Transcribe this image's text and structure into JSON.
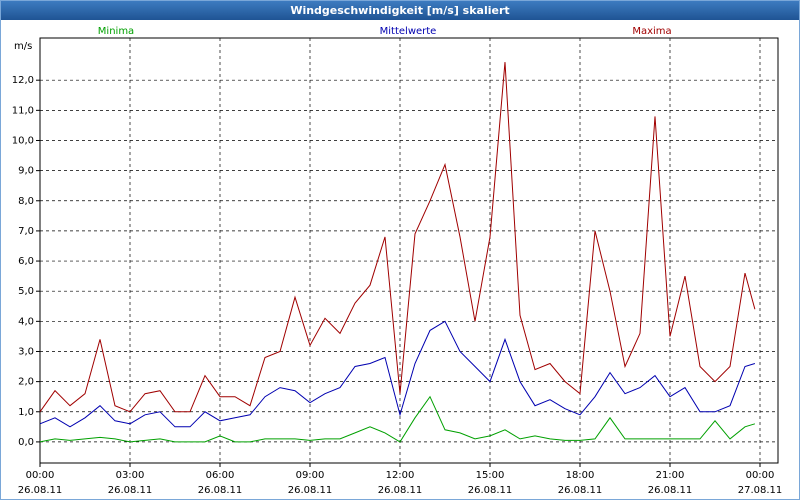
{
  "chart_data": {
    "type": "line",
    "title": "Windgeschwindigkeit [m/s] skaliert",
    "ylabel": "m/s",
    "x": [
      0,
      0.5,
      1,
      1.5,
      2,
      2.5,
      3,
      3.5,
      4,
      4.5,
      5,
      5.5,
      6,
      6.5,
      7,
      7.5,
      8,
      8.5,
      9,
      9.5,
      10,
      10.5,
      11,
      11.5,
      12,
      12.5,
      13,
      13.5,
      14,
      14.5,
      15,
      15.5,
      16,
      16.5,
      17,
      17.5,
      18,
      18.5,
      19,
      19.5,
      20,
      20.5,
      21,
      21.5,
      22,
      22.5,
      23,
      23.5,
      23.83
    ],
    "series": [
      {
        "name": "Minima",
        "color": "#00a000",
        "values": [
          0,
          0.1,
          0.05,
          0.1,
          0.15,
          0.1,
          0,
          0.05,
          0.1,
          0,
          0,
          0,
          0.2,
          0,
          0,
          0.1,
          0.1,
          0.1,
          0.05,
          0.1,
          0.1,
          0.3,
          0.5,
          0.3,
          0,
          0.8,
          1.5,
          0.4,
          0.3,
          0.1,
          0.2,
          0.4,
          0.1,
          0.2,
          0.1,
          0.05,
          0.05,
          0.1,
          0.8,
          0.1,
          0.1,
          0.1,
          0.1,
          0.1,
          0.1,
          0.7,
          0.1,
          0.5,
          0.6
        ]
      },
      {
        "name": "Mittelwerte",
        "color": "#0000b0",
        "values": [
          0.6,
          0.8,
          0.5,
          0.8,
          1.2,
          0.7,
          0.6,
          0.9,
          1.0,
          0.5,
          0.5,
          1.0,
          0.7,
          0.8,
          0.9,
          1.5,
          1.8,
          1.7,
          1.3,
          1.6,
          1.8,
          2.5,
          2.6,
          2.8,
          0.9,
          2.6,
          3.7,
          4.0,
          3.0,
          2.5,
          2.0,
          3.4,
          2.0,
          1.2,
          1.4,
          1.1,
          0.9,
          1.5,
          2.3,
          1.6,
          1.8,
          2.2,
          1.5,
          1.8,
          1.0,
          1.0,
          1.2,
          2.5,
          2.6
        ]
      },
      {
        "name": "Maxima",
        "color": "#a00000",
        "values": [
          1.0,
          1.7,
          1.2,
          1.6,
          3.4,
          1.2,
          1.0,
          1.6,
          1.7,
          1.0,
          1.0,
          2.2,
          1.5,
          1.5,
          1.2,
          2.8,
          3.0,
          4.8,
          3.2,
          4.1,
          3.6,
          4.6,
          5.2,
          6.8,
          1.6,
          6.9,
          8.0,
          9.2,
          6.8,
          4.0,
          6.8,
          12.6,
          4.2,
          2.4,
          2.6,
          2.0,
          1.6,
          7.0,
          5.0,
          2.5,
          3.6,
          10.8,
          3.5,
          5.5,
          2.5,
          2.0,
          2.5,
          5.6,
          4.4
        ]
      }
    ],
    "xlim": [
      0,
      24
    ],
    "xticks": [
      {
        "value": 0,
        "label": "00:00",
        "date": "26.08.11"
      },
      {
        "value": 3,
        "label": "03:00",
        "date": "26.08.11"
      },
      {
        "value": 6,
        "label": "06:00",
        "date": "26.08.11"
      },
      {
        "value": 9,
        "label": "09:00",
        "date": "26.08.11"
      },
      {
        "value": 12,
        "label": "12:00",
        "date": "26.08.11"
      },
      {
        "value": 15,
        "label": "15:00",
        "date": "26.08.11"
      },
      {
        "value": 18,
        "label": "18:00",
        "date": "26.08.11"
      },
      {
        "value": 21,
        "label": "21:00",
        "date": "26.08.11"
      },
      {
        "value": 24,
        "label": "00:00",
        "date": "27.08.11"
      }
    ],
    "ylim": [
      -0.7,
      13.4
    ],
    "yticks": [
      {
        "value": 0,
        "label": "0,0"
      },
      {
        "value": 1,
        "label": "1,0"
      },
      {
        "value": 2,
        "label": "2,0"
      },
      {
        "value": 3,
        "label": "3,0"
      },
      {
        "value": 4,
        "label": "4,0"
      },
      {
        "value": 5,
        "label": "5,0"
      },
      {
        "value": 6,
        "label": "6,0"
      },
      {
        "value": 7,
        "label": "7,0"
      },
      {
        "value": 8,
        "label": "8,0"
      },
      {
        "value": 9,
        "label": "9,0"
      },
      {
        "value": 10,
        "label": "10,0"
      },
      {
        "value": 11,
        "label": "11,0"
      },
      {
        "value": 12,
        "label": "12,0"
      }
    ],
    "grid": true
  }
}
